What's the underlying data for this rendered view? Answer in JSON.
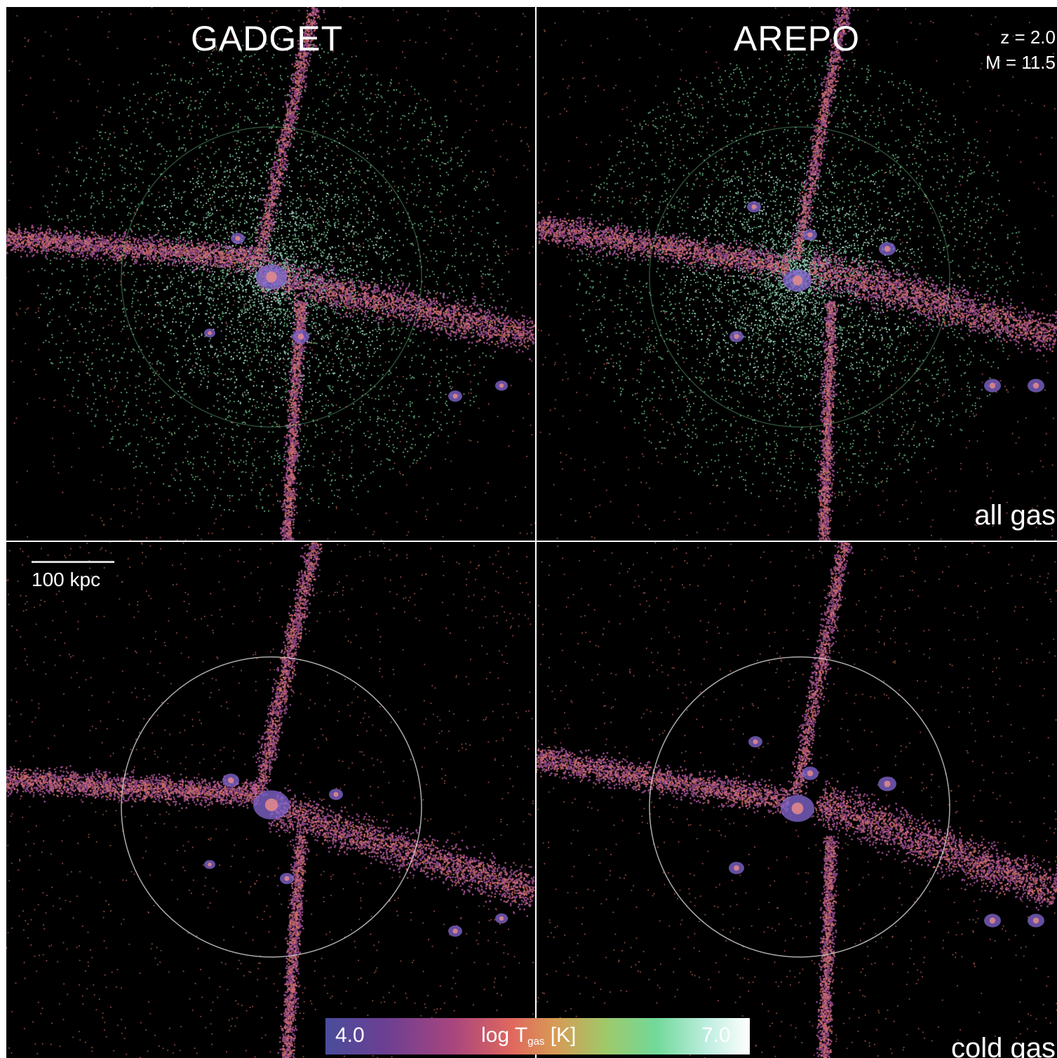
{
  "panels": {
    "top_left": {
      "title": "GADGET"
    },
    "top_right": {
      "title": "AREPO",
      "meta": [
        "z = 2.0",
        "M = 11.5"
      ],
      "row_label": "all gas"
    },
    "bottom_left": {
      "scale_bar_label": "100 kpc"
    },
    "bottom_right": {
      "row_label": "cold gas"
    }
  },
  "colorbar": {
    "min_label": "4.0",
    "max_label": "7.0",
    "quantity_label": "log T",
    "quantity_subscript": "gas",
    "unit_label": "[K]",
    "colors": [
      "#4a4d9c",
      "#6b3f93",
      "#a8457e",
      "#e0685e",
      "#d89a55",
      "#9fc96a",
      "#71d99a",
      "#bfeee0",
      "#ffffff"
    ]
  },
  "colors": {
    "background": "#000000",
    "cold_gas": "#b45aa6",
    "warm_gas": "#e07865",
    "hot_gas": "#7fdc9c",
    "hottest_gas": "#b8f0e0",
    "virial_circle": "#d8d8d8"
  }
}
